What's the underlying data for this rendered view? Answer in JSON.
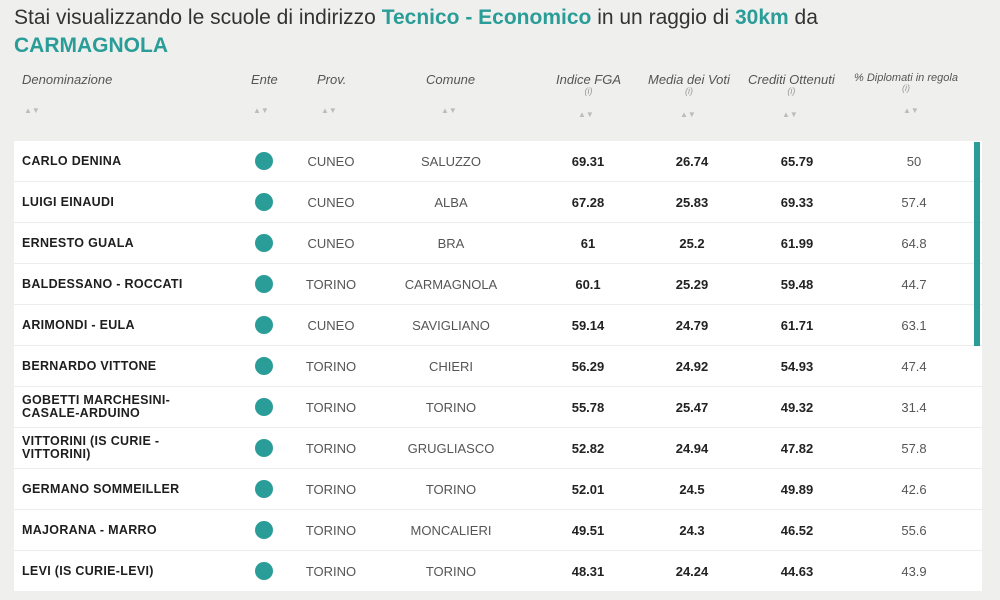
{
  "heading": {
    "prefix": "Stai visualizzando le scuole di indirizzo",
    "indirizzo": "Tecnico - Economico",
    "middle": "in un raggio di",
    "raggio": "30km",
    "suffix": "da",
    "city": "CARMAGNOLA"
  },
  "columns": {
    "denominazione": "Denominazione",
    "ente": "Ente",
    "prov": "Prov.",
    "comune": "Comune",
    "fga": "Indice FGA",
    "media": "Media dei Voti",
    "crediti": "Crediti Ottenuti",
    "diplomati": "% Diplomati in regola",
    "info_symbol": "(i)",
    "sort_symbol": "▲▼"
  },
  "accent_color": "#2a9d98",
  "rows": [
    {
      "name": "CARLO DENINA",
      "prov": "CUNEO",
      "comune": "SALUZZO",
      "fga": "69.31",
      "media": "26.74",
      "crediti": "65.79",
      "diplomati": "50"
    },
    {
      "name": "LUIGI EINAUDI",
      "prov": "CUNEO",
      "comune": "ALBA",
      "fga": "67.28",
      "media": "25.83",
      "crediti": "69.33",
      "diplomati": "57.4"
    },
    {
      "name": "ERNESTO GUALA",
      "prov": "CUNEO",
      "comune": "BRA",
      "fga": "61",
      "media": "25.2",
      "crediti": "61.99",
      "diplomati": "64.8"
    },
    {
      "name": "BALDESSANO - ROCCATI",
      "prov": "TORINO",
      "comune": "CARMAGNOLA",
      "fga": "60.1",
      "media": "25.29",
      "crediti": "59.48",
      "diplomati": "44.7"
    },
    {
      "name": "ARIMONDI - EULA",
      "prov": "CUNEO",
      "comune": "SAVIGLIANO",
      "fga": "59.14",
      "media": "24.79",
      "crediti": "61.71",
      "diplomati": "63.1"
    },
    {
      "name": "BERNARDO VITTONE",
      "prov": "TORINO",
      "comune": "CHIERI",
      "fga": "56.29",
      "media": "24.92",
      "crediti": "54.93",
      "diplomati": "47.4"
    },
    {
      "name": "GOBETTI MARCHESINI-CASALE-ARDUINO",
      "prov": "TORINO",
      "comune": "TORINO",
      "fga": "55.78",
      "media": "25.47",
      "crediti": "49.32",
      "diplomati": "31.4"
    },
    {
      "name": "VITTORINI (IS CURIE - VITTORINI)",
      "prov": "TORINO",
      "comune": "GRUGLIASCO",
      "fga": "52.82",
      "media": "24.94",
      "crediti": "47.82",
      "diplomati": "57.8"
    },
    {
      "name": "GERMANO SOMMEILLER",
      "prov": "TORINO",
      "comune": "TORINO",
      "fga": "52.01",
      "media": "24.5",
      "crediti": "49.89",
      "diplomati": "42.6"
    },
    {
      "name": "MAJORANA - MARRO",
      "prov": "TORINO",
      "comune": "MONCALIERI",
      "fga": "49.51",
      "media": "24.3",
      "crediti": "46.52",
      "diplomati": "55.6"
    },
    {
      "name": "LEVI (IS CURIE-LEVI)",
      "prov": "TORINO",
      "comune": "TORINO",
      "fga": "48.31",
      "media": "24.24",
      "crediti": "44.63",
      "diplomati": "43.9"
    }
  ]
}
